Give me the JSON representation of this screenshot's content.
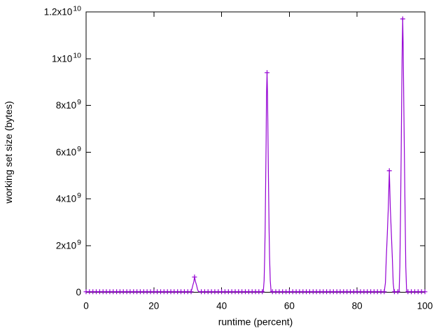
{
  "chart_data": {
    "type": "line",
    "title": "",
    "xlabel": "runtime (percent)",
    "ylabel": "working set size (bytes)",
    "xlim": [
      0,
      100
    ],
    "ylim": [
      0,
      12000000000.0
    ],
    "grid": false,
    "legend": "none",
    "background_color": "#ffffff",
    "border_color": "#000000",
    "text_color": "#000000",
    "x_ticks": [
      {
        "value": 0,
        "label": "0"
      },
      {
        "value": 20,
        "label": "20"
      },
      {
        "value": 40,
        "label": "40"
      },
      {
        "value": 60,
        "label": "60"
      },
      {
        "value": 80,
        "label": "80"
      },
      {
        "value": 100,
        "label": "100"
      }
    ],
    "y_ticks": [
      {
        "value": 0,
        "base": "0",
        "exp": ""
      },
      {
        "value": 2000000000.0,
        "base": "2x10",
        "exp": "9"
      },
      {
        "value": 4000000000.0,
        "base": "4x10",
        "exp": "9"
      },
      {
        "value": 6000000000.0,
        "base": "6x10",
        "exp": "9"
      },
      {
        "value": 8000000000.0,
        "base": "8x10",
        "exp": "9"
      },
      {
        "value": 10000000000.0,
        "base": "1x10",
        "exp": "10"
      },
      {
        "value": 12000000000.0,
        "base": "1.2x10",
        "exp": "10"
      }
    ],
    "series": [
      {
        "name": "working set size",
        "color": "#9400d3",
        "marker": "plus",
        "style": "linespoints",
        "peaks": [
          {
            "x": 32,
            "y": 650000000.0
          },
          {
            "x": 53.4,
            "y": 9400000000.0
          },
          {
            "x": 89.5,
            "y": 5200000000.0
          },
          {
            "x": 93.45,
            "y": 11700000000.0
          }
        ],
        "points": [
          [
            0,
            20000000.0
          ],
          [
            1,
            20000000.0
          ],
          [
            2,
            20000000.0
          ],
          [
            3,
            20000000.0
          ],
          [
            4,
            20000000.0
          ],
          [
            5,
            20000000.0
          ],
          [
            6,
            20000000.0
          ],
          [
            7,
            20000000.0
          ],
          [
            8,
            20000000.0
          ],
          [
            9,
            20000000.0
          ],
          [
            10,
            20000000.0
          ],
          [
            11,
            20000000.0
          ],
          [
            12,
            20000000.0
          ],
          [
            13,
            20000000.0
          ],
          [
            14,
            20000000.0
          ],
          [
            15,
            20000000.0
          ],
          [
            16,
            20000000.0
          ],
          [
            17,
            20000000.0
          ],
          [
            18,
            20000000.0
          ],
          [
            19,
            20000000.0
          ],
          [
            20,
            20000000.0
          ],
          [
            21,
            20000000.0
          ],
          [
            22,
            20000000.0
          ],
          [
            23,
            20000000.0
          ],
          [
            24,
            20000000.0
          ],
          [
            25,
            20000000.0
          ],
          [
            26,
            20000000.0
          ],
          [
            27,
            20000000.0
          ],
          [
            28,
            20000000.0
          ],
          [
            29,
            20000000.0
          ],
          [
            30,
            20000000.0
          ],
          [
            30.9,
            20000000.0
          ],
          [
            31.2,
            120000000.0
          ],
          [
            31.5,
            300000000.0
          ],
          [
            31.8,
            450000000.0
          ],
          [
            32,
            650000000.0
          ],
          [
            32.3,
            450000000.0
          ],
          [
            32.6,
            300000000.0
          ],
          [
            32.9,
            120000000.0
          ],
          [
            33.2,
            20000000.0
          ],
          [
            34,
            20000000.0
          ],
          [
            35,
            20000000.0
          ],
          [
            36,
            20000000.0
          ],
          [
            37,
            20000000.0
          ],
          [
            38,
            20000000.0
          ],
          [
            39,
            20000000.0
          ],
          [
            40,
            20000000.0
          ],
          [
            41,
            20000000.0
          ],
          [
            42,
            20000000.0
          ],
          [
            43,
            20000000.0
          ],
          [
            44,
            20000000.0
          ],
          [
            45,
            20000000.0
          ],
          [
            46,
            20000000.0
          ],
          [
            47,
            20000000.0
          ],
          [
            48,
            20000000.0
          ],
          [
            49,
            20000000.0
          ],
          [
            50,
            20000000.0
          ],
          [
            51,
            20000000.0
          ],
          [
            52,
            20000000.0
          ],
          [
            52.3,
            20000000.0
          ],
          [
            52.55,
            500000000.0
          ],
          [
            52.7,
            1500000000.0
          ],
          [
            52.85,
            2700000000.0
          ],
          [
            53,
            4650000000.0
          ],
          [
            53.15,
            6500000000.0
          ],
          [
            53.25,
            8400000000.0
          ],
          [
            53.4,
            9400000000.0
          ],
          [
            53.55,
            8400000000.0
          ],
          [
            53.7,
            6500000000.0
          ],
          [
            53.85,
            4650000000.0
          ],
          [
            54,
            2700000000.0
          ],
          [
            54.15,
            1500000000.0
          ],
          [
            54.35,
            500000000.0
          ],
          [
            54.6,
            20000000.0
          ],
          [
            55,
            20000000.0
          ],
          [
            56,
            20000000.0
          ],
          [
            57,
            20000000.0
          ],
          [
            58,
            20000000.0
          ],
          [
            59,
            20000000.0
          ],
          [
            60,
            20000000.0
          ],
          [
            61,
            20000000.0
          ],
          [
            62,
            20000000.0
          ],
          [
            63,
            20000000.0
          ],
          [
            64,
            20000000.0
          ],
          [
            65,
            20000000.0
          ],
          [
            66,
            20000000.0
          ],
          [
            67,
            20000000.0
          ],
          [
            68,
            20000000.0
          ],
          [
            69,
            20000000.0
          ],
          [
            70,
            20000000.0
          ],
          [
            71,
            20000000.0
          ],
          [
            72,
            20000000.0
          ],
          [
            73,
            20000000.0
          ],
          [
            74,
            20000000.0
          ],
          [
            75,
            20000000.0
          ],
          [
            76,
            20000000.0
          ],
          [
            77,
            20000000.0
          ],
          [
            78,
            20000000.0
          ],
          [
            79,
            20000000.0
          ],
          [
            80,
            20000000.0
          ],
          [
            81,
            20000000.0
          ],
          [
            82,
            20000000.0
          ],
          [
            83,
            20000000.0
          ],
          [
            84,
            20000000.0
          ],
          [
            85,
            20000000.0
          ],
          [
            86,
            20000000.0
          ],
          [
            87,
            20000000.0
          ],
          [
            88,
            20000000.0
          ],
          [
            88.35,
            400000000.0
          ],
          [
            88.6,
            1450000000.0
          ],
          [
            88.9,
            2500000000.0
          ],
          [
            89.2,
            3600000000.0
          ],
          [
            89.5,
            5200000000.0
          ],
          [
            89.8,
            3600000000.0
          ],
          [
            90.1,
            2500000000.0
          ],
          [
            90.4,
            1450000000.0
          ],
          [
            90.65,
            400000000.0
          ],
          [
            90.9,
            20000000.0
          ],
          [
            91,
            20000000.0
          ],
          [
            92,
            20000000.0
          ],
          [
            92.4,
            20000000.0
          ],
          [
            92.6,
            1100000000.0
          ],
          [
            92.8,
            3400000000.0
          ],
          [
            93,
            5900000000.0
          ],
          [
            93.15,
            8200000000.0
          ],
          [
            93.3,
            10500000000.0
          ],
          [
            93.45,
            11700000000.0
          ],
          [
            93.6,
            10500000000.0
          ],
          [
            93.75,
            8200000000.0
          ],
          [
            93.95,
            5900000000.0
          ],
          [
            94.15,
            3400000000.0
          ],
          [
            94.35,
            1100000000.0
          ],
          [
            94.6,
            20000000.0
          ],
          [
            95,
            20000000.0
          ],
          [
            96,
            20000000.0
          ],
          [
            97,
            20000000.0
          ],
          [
            98,
            20000000.0
          ],
          [
            99,
            20000000.0
          ],
          [
            100,
            20000000.0
          ]
        ],
        "marker_points": [
          [
            0,
            20000000.0
          ],
          [
            1,
            20000000.0
          ],
          [
            2,
            20000000.0
          ],
          [
            3,
            20000000.0
          ],
          [
            4,
            20000000.0
          ],
          [
            5,
            20000000.0
          ],
          [
            6,
            20000000.0
          ],
          [
            7,
            20000000.0
          ],
          [
            8,
            20000000.0
          ],
          [
            9,
            20000000.0
          ],
          [
            10,
            20000000.0
          ],
          [
            11,
            20000000.0
          ],
          [
            12,
            20000000.0
          ],
          [
            13,
            20000000.0
          ],
          [
            14,
            20000000.0
          ],
          [
            15,
            20000000.0
          ],
          [
            16,
            20000000.0
          ],
          [
            17,
            20000000.0
          ],
          [
            18,
            20000000.0
          ],
          [
            19,
            20000000.0
          ],
          [
            20,
            20000000.0
          ],
          [
            21,
            20000000.0
          ],
          [
            22,
            20000000.0
          ],
          [
            23,
            20000000.0
          ],
          [
            24,
            20000000.0
          ],
          [
            25,
            20000000.0
          ],
          [
            26,
            20000000.0
          ],
          [
            27,
            20000000.0
          ],
          [
            28,
            20000000.0
          ],
          [
            29,
            20000000.0
          ],
          [
            30,
            20000000.0
          ],
          [
            31,
            20000000.0
          ],
          [
            32,
            650000000.0
          ],
          [
            34,
            20000000.0
          ],
          [
            35,
            20000000.0
          ],
          [
            36,
            20000000.0
          ],
          [
            37,
            20000000.0
          ],
          [
            38,
            20000000.0
          ],
          [
            39,
            20000000.0
          ],
          [
            40,
            20000000.0
          ],
          [
            41,
            20000000.0
          ],
          [
            42,
            20000000.0
          ],
          [
            43,
            20000000.0
          ],
          [
            44,
            20000000.0
          ],
          [
            45,
            20000000.0
          ],
          [
            46,
            20000000.0
          ],
          [
            47,
            20000000.0
          ],
          [
            48,
            20000000.0
          ],
          [
            49,
            20000000.0
          ],
          [
            50,
            20000000.0
          ],
          [
            51,
            20000000.0
          ],
          [
            52,
            20000000.0
          ],
          [
            53.4,
            9400000000.0
          ],
          [
            55,
            20000000.0
          ],
          [
            56,
            20000000.0
          ],
          [
            57,
            20000000.0
          ],
          [
            58,
            20000000.0
          ],
          [
            59,
            20000000.0
          ],
          [
            60,
            20000000.0
          ],
          [
            61,
            20000000.0
          ],
          [
            62,
            20000000.0
          ],
          [
            63,
            20000000.0
          ],
          [
            64,
            20000000.0
          ],
          [
            65,
            20000000.0
          ],
          [
            66,
            20000000.0
          ],
          [
            67,
            20000000.0
          ],
          [
            68,
            20000000.0
          ],
          [
            69,
            20000000.0
          ],
          [
            70,
            20000000.0
          ],
          [
            71,
            20000000.0
          ],
          [
            72,
            20000000.0
          ],
          [
            73,
            20000000.0
          ],
          [
            74,
            20000000.0
          ],
          [
            75,
            20000000.0
          ],
          [
            76,
            20000000.0
          ],
          [
            77,
            20000000.0
          ],
          [
            78,
            20000000.0
          ],
          [
            79,
            20000000.0
          ],
          [
            80,
            20000000.0
          ],
          [
            81,
            20000000.0
          ],
          [
            82,
            20000000.0
          ],
          [
            83,
            20000000.0
          ],
          [
            84,
            20000000.0
          ],
          [
            85,
            20000000.0
          ],
          [
            86,
            20000000.0
          ],
          [
            87,
            20000000.0
          ],
          [
            88,
            20000000.0
          ],
          [
            89.5,
            5200000000.0
          ],
          [
            91,
            20000000.0
          ],
          [
            92,
            20000000.0
          ],
          [
            93.45,
            11700000000.0
          ],
          [
            95,
            20000000.0
          ],
          [
            96,
            20000000.0
          ],
          [
            97,
            20000000.0
          ],
          [
            98,
            20000000.0
          ],
          [
            99,
            20000000.0
          ],
          [
            100,
            20000000.0
          ]
        ]
      }
    ]
  }
}
